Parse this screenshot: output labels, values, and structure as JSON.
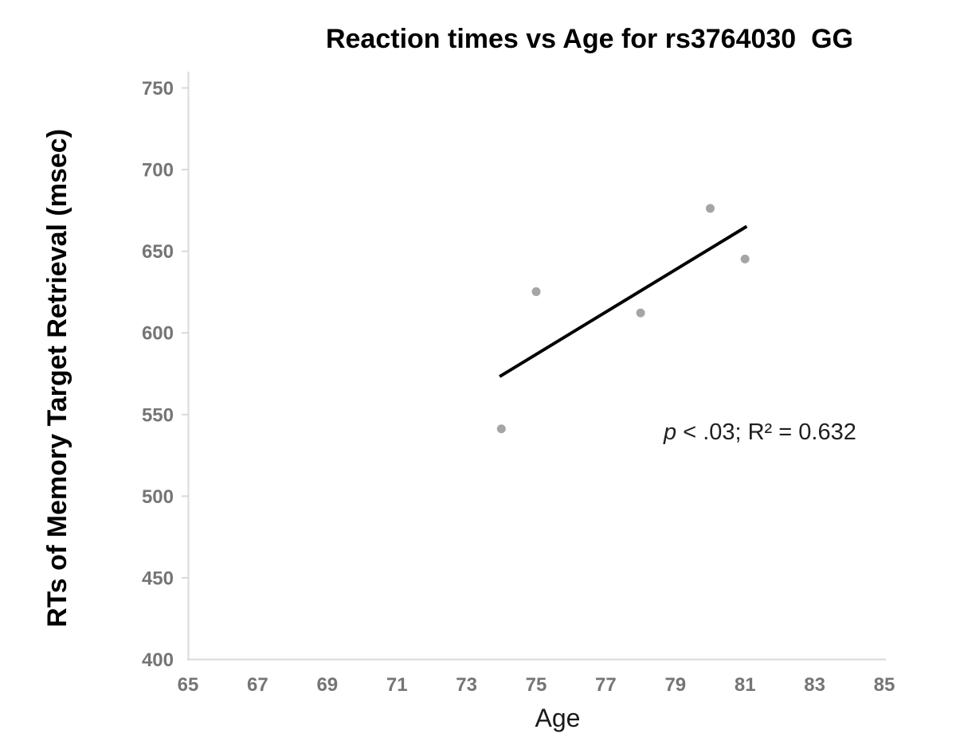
{
  "chart_data": {
    "type": "scatter",
    "title": "Reaction times vs Age for rs3764030  GG",
    "xlabel": "Age",
    "ylabel": "RTs of Memory Target Retrieval (msec)",
    "xlim": [
      65,
      85
    ],
    "ylim": [
      400,
      750
    ],
    "xticks": [
      65,
      67,
      69,
      71,
      73,
      75,
      77,
      79,
      81,
      83,
      85
    ],
    "yticks": [
      400,
      450,
      500,
      550,
      600,
      650,
      700,
      750
    ],
    "grid": false,
    "legend": "none",
    "points": [
      {
        "x": 74,
        "y": 541
      },
      {
        "x": 75,
        "y": 625
      },
      {
        "x": 78,
        "y": 612
      },
      {
        "x": 80,
        "y": 676
      },
      {
        "x": 81,
        "y": 645
      }
    ],
    "trendline": {
      "x1": 73.95,
      "y1": 573,
      "x2": 81.05,
      "y2": 665
    },
    "annotation": {
      "italic": "p",
      "rest": " < .03; R² = 0.632",
      "full_text": "p < .03; R² = 0.632"
    },
    "colors": {
      "point": "#a5a5a5",
      "trendline": "#000000",
      "axis_line": "#d9d9d9",
      "tick_label": "#757575",
      "title": "#000000"
    }
  }
}
